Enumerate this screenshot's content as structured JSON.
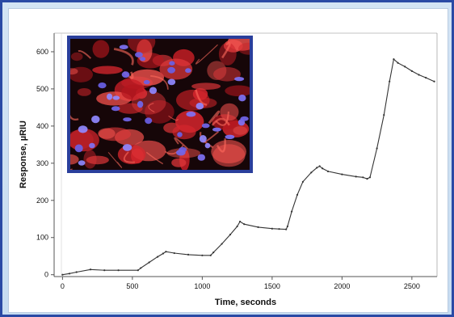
{
  "chart_data": {
    "type": "line",
    "title": "",
    "xlabel": "Time, seconds",
    "ylabel": "Response, µRIU",
    "xlim": [
      -60,
      2680
    ],
    "ylim": [
      -5,
      650
    ],
    "x_ticks": [
      0,
      500,
      1000,
      1500,
      2000,
      2500
    ],
    "y_ticks": [
      0,
      100,
      200,
      300,
      400,
      500,
      600
    ],
    "grid": false,
    "legend": "none",
    "line_color": "#333333",
    "inset": {
      "type": "fluorescence micrograph",
      "colors": {
        "cells": "#d8232c",
        "nuclei": "#7a6cf0",
        "background": "#160608",
        "frame": "#2a3f9c"
      }
    },
    "series": [
      {
        "x": [
          0,
          50,
          100,
          200,
          300,
          400,
          540,
          560,
          620,
          680,
          720,
          740,
          800,
          900,
          1000,
          1060,
          1080,
          1140,
          1200,
          1250,
          1270,
          1300,
          1400,
          1500,
          1550,
          1600,
          1610,
          1640,
          1680,
          1720,
          1780,
          1820,
          1840,
          1860,
          1900,
          2000,
          2100,
          2150,
          2180,
          2200,
          2250,
          2300,
          2340,
          2370,
          2400,
          2450,
          2500,
          2550,
          2600,
          2660
        ],
        "y": [
          0,
          3,
          7,
          14,
          12,
          12,
          12,
          18,
          33,
          48,
          57,
          62,
          58,
          54,
          52,
          52,
          60,
          83,
          108,
          130,
          143,
          136,
          128,
          124,
          123,
          122,
          130,
          170,
          215,
          250,
          275,
          288,
          292,
          286,
          278,
          270,
          264,
          262,
          258,
          262,
          340,
          430,
          520,
          580,
          570,
          560,
          548,
          538,
          530,
          520
        ]
      }
    ]
  }
}
